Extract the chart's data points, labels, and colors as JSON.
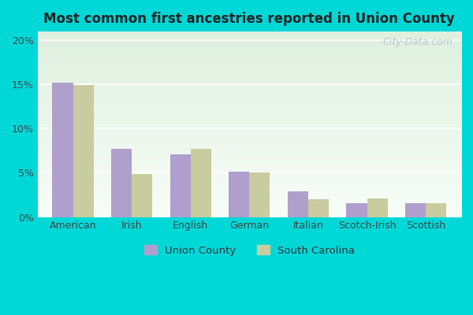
{
  "title": "Most common first ancestries reported in Union County",
  "categories": [
    "American",
    "Irish",
    "English",
    "German",
    "Italian",
    "Scotch-Irish",
    "Scottish"
  ],
  "union_county": [
    15.2,
    7.7,
    7.1,
    5.1,
    2.9,
    1.6,
    1.6
  ],
  "south_carolina": [
    14.9,
    4.9,
    7.7,
    5.0,
    2.0,
    2.1,
    1.6
  ],
  "union_color": "#b09fcc",
  "sc_color": "#c8cc9f",
  "bg_color_outer": "#00d8d8",
  "bg_color_plot": "#e8f5e8",
  "ylim": [
    0,
    21
  ],
  "yticks": [
    0,
    5,
    10,
    15,
    20
  ],
  "ytick_labels": [
    "0%",
    "5%",
    "10%",
    "15%",
    "20%"
  ],
  "bar_width": 0.35,
  "legend_union": "Union County",
  "legend_sc": "South Carolina",
  "watermark": "City-Data.com"
}
